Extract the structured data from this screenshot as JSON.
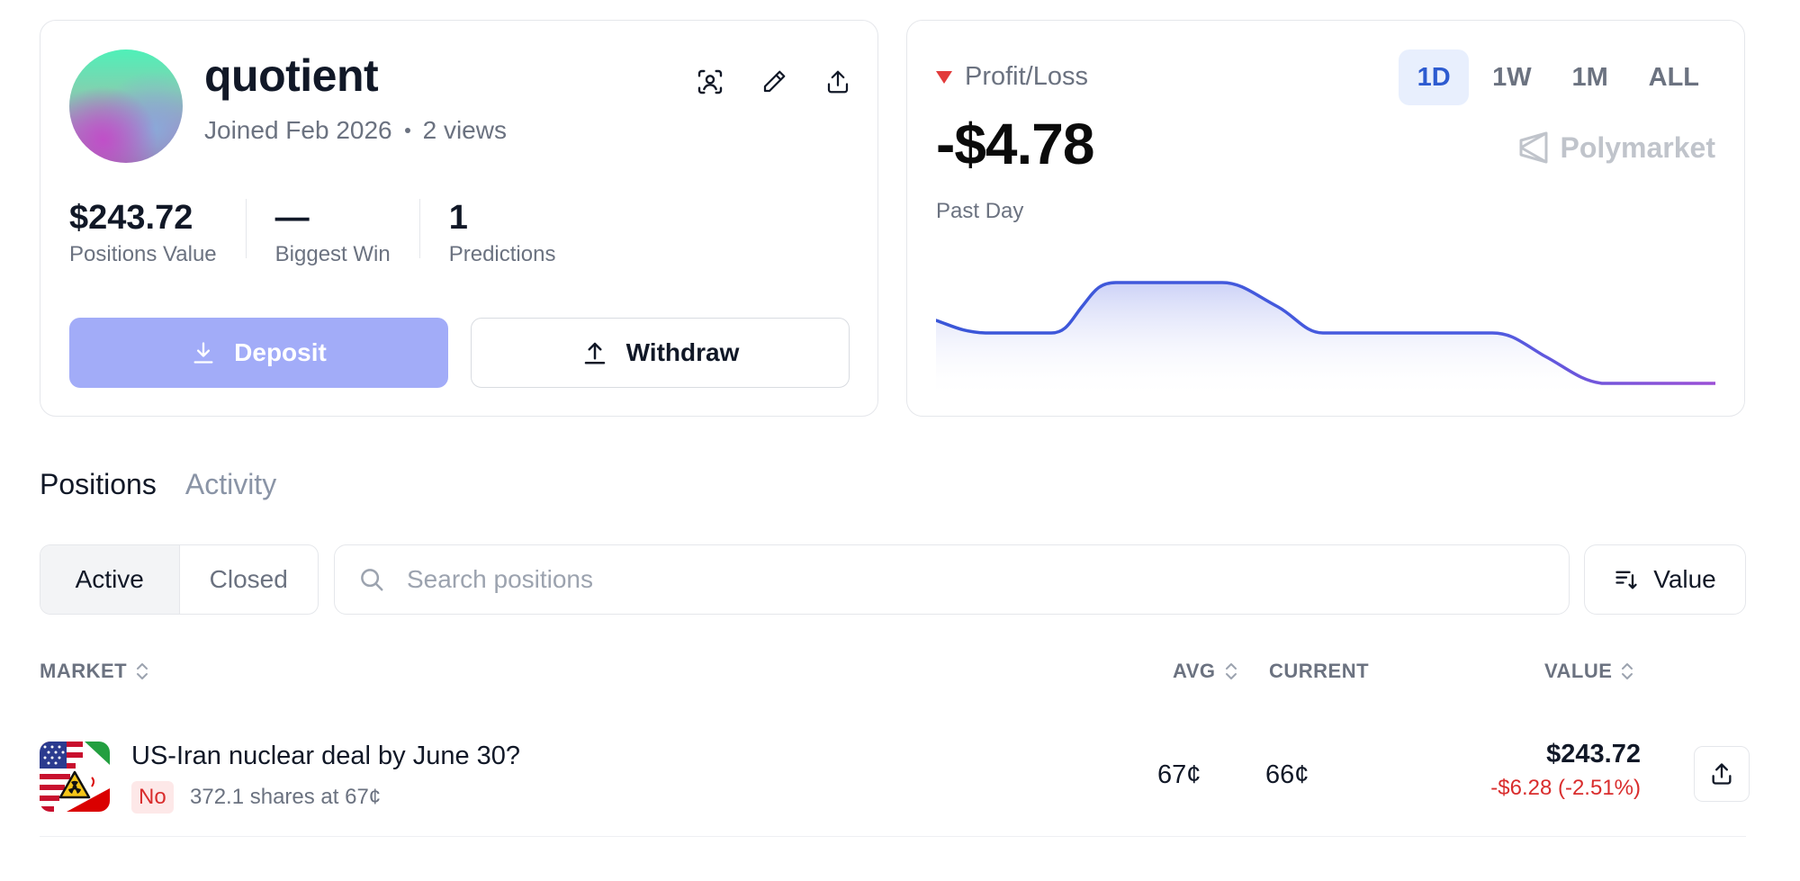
{
  "profile": {
    "username": "quotient",
    "joined": "Joined Feb 2026",
    "views": "2 views",
    "icons": [
      "scan-user-icon",
      "pencil-icon",
      "upload-icon"
    ],
    "stats": [
      {
        "value": "$243.72",
        "label": "Positions Value"
      },
      {
        "value": "—",
        "label": "Biggest Win"
      },
      {
        "value": "1",
        "label": "Predictions"
      }
    ],
    "deposit_label": "Deposit",
    "withdraw_label": "Withdraw",
    "colors": {
      "deposit": "#a2acf8"
    }
  },
  "pnl": {
    "label": "Profit/Loss",
    "value": "-$4.78",
    "period": "Past Day",
    "brand": "Polymarket",
    "ranges": [
      "1D",
      "1W",
      "1M",
      "ALL"
    ],
    "active_range": "1D",
    "colors": {
      "negative": "#e23b3b",
      "line_start": "#3a56d8",
      "line_end": "#9b4fd6"
    }
  },
  "tabs": [
    "Positions",
    "Activity"
  ],
  "active_tab": "Positions",
  "filters": {
    "active": "Active",
    "closed": "Closed"
  },
  "search": {
    "placeholder": "Search positions",
    "value": ""
  },
  "sort": {
    "label": "Value"
  },
  "table": {
    "headers": {
      "market": "MARKET",
      "avg": "AVG",
      "current": "CURRENT",
      "value": "VALUE"
    },
    "rows": [
      {
        "title": "US-Iran nuclear deal by June 30?",
        "outcome": "No",
        "shares": "372.1 shares at 67¢",
        "avg": "67¢",
        "current": "66¢",
        "value": "$243.72",
        "change": "-$6.28 (-2.51%)",
        "change_color": "#d92d2d"
      }
    ]
  }
}
